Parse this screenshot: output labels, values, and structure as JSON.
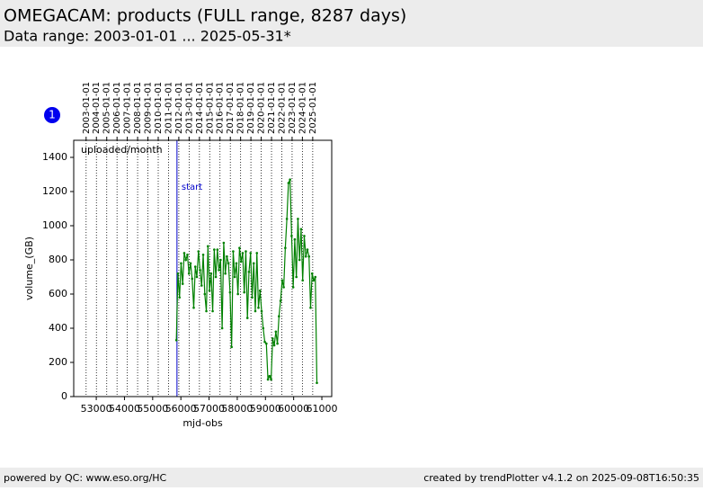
{
  "chart_data": {
    "type": "line",
    "title": "OMEGACAM: products (FULL range, 8287 days)",
    "subtitle": "Data range: 2003-01-01 ... 2025-05-31*",
    "annotation": "uploaded/month",
    "xlabel": "mjd-obs",
    "ylabel": "volume_(GB)",
    "xlim": [
      52200,
      61350
    ],
    "ylim": [
      0,
      1500
    ],
    "xticks": [
      53000,
      54000,
      55000,
      56000,
      57000,
      58000,
      59000,
      60000,
      61000
    ],
    "yticks": [
      0,
      200,
      400,
      600,
      800,
      1000,
      1200,
      1400
    ],
    "top_ticks": [
      {
        "value": 52640,
        "label": "2003-01-01"
      },
      {
        "value": 53005,
        "label": "2004-01-01"
      },
      {
        "value": 53371,
        "label": "2005-01-01"
      },
      {
        "value": 53736,
        "label": "2006-01-01"
      },
      {
        "value": 54101,
        "label": "2007-01-01"
      },
      {
        "value": 54466,
        "label": "2008-01-01"
      },
      {
        "value": 54832,
        "label": "2009-01-01"
      },
      {
        "value": 55197,
        "label": "2010-01-01"
      },
      {
        "value": 55562,
        "label": "2011-01-01"
      },
      {
        "value": 55927,
        "label": "2012-01-01"
      },
      {
        "value": 56293,
        "label": "2013-01-01"
      },
      {
        "value": 56658,
        "label": "2014-01-01"
      },
      {
        "value": 57023,
        "label": "2015-01-01"
      },
      {
        "value": 57388,
        "label": "2016-01-01"
      },
      {
        "value": 57754,
        "label": "2017-01-01"
      },
      {
        "value": 58119,
        "label": "2018-01-01"
      },
      {
        "value": 58484,
        "label": "2019-01-01"
      },
      {
        "value": 58849,
        "label": "2020-01-01"
      },
      {
        "value": 59215,
        "label": "2021-01-01"
      },
      {
        "value": 59580,
        "label": "2022-01-01"
      },
      {
        "value": 59945,
        "label": "2023-01-01"
      },
      {
        "value": 60310,
        "label": "2024-01-01"
      },
      {
        "value": 60676,
        "label": "2025-01-01"
      }
    ],
    "marker_line": {
      "x": 55862,
      "label": "start",
      "color": "#0000cc"
    },
    "x": [
      55840,
      55896,
      55952,
      56008,
      56064,
      56120,
      56176,
      56232,
      56288,
      56344,
      56400,
      56456,
      56512,
      56568,
      56624,
      56680,
      56736,
      56792,
      56848,
      56904,
      56960,
      57016,
      57072,
      57128,
      57184,
      57240,
      57296,
      57352,
      57408,
      57464,
      57520,
      57576,
      57632,
      57688,
      57744,
      57800,
      57856,
      57912,
      57968,
      58024,
      58080,
      58136,
      58192,
      58248,
      58304,
      58360,
      58416,
      58472,
      58528,
      58584,
      58640,
      58696,
      58752,
      58808,
      58864,
      58920,
      58976,
      59032,
      59088,
      59144,
      59200,
      59256,
      59312,
      59368,
      59424,
      59480,
      59536,
      59592,
      59648,
      59704,
      59760,
      59816,
      59872,
      59928,
      59984,
      60040,
      60096,
      60152,
      60208,
      60264,
      60320,
      60376,
      60432,
      60488,
      60544,
      60600,
      60656,
      60712,
      60768,
      60824
    ],
    "series": [
      {
        "color": "#008000",
        "values": [
          330,
          720,
          580,
          780,
          660,
          840,
          800,
          830,
          720,
          780,
          690,
          520,
          760,
          700,
          850,
          740,
          650,
          830,
          600,
          500,
          880,
          620,
          720,
          500,
          860,
          700,
          860,
          740,
          800,
          400,
          900,
          720,
          820,
          780,
          610,
          290,
          850,
          700,
          780,
          600,
          870,
          790,
          840,
          610,
          850,
          460,
          730,
          840,
          580,
          780,
          500,
          840,
          520,
          620,
          500,
          400,
          320,
          310,
          100,
          120,
          100,
          340,
          300,
          380,
          310,
          470,
          560,
          680,
          640,
          870,
          1040,
          1250,
          1270,
          940,
          640,
          920,
          700,
          1040,
          800,
          980,
          680,
          940,
          820,
          860,
          820,
          520,
          720,
          680,
          700,
          80
        ]
      }
    ]
  },
  "badge": "1",
  "footer": {
    "left": "powered by QC: www.eso.org/HC",
    "right": "created by trendPlotter v4.1.2 on 2025-09-08T16:50:35"
  }
}
